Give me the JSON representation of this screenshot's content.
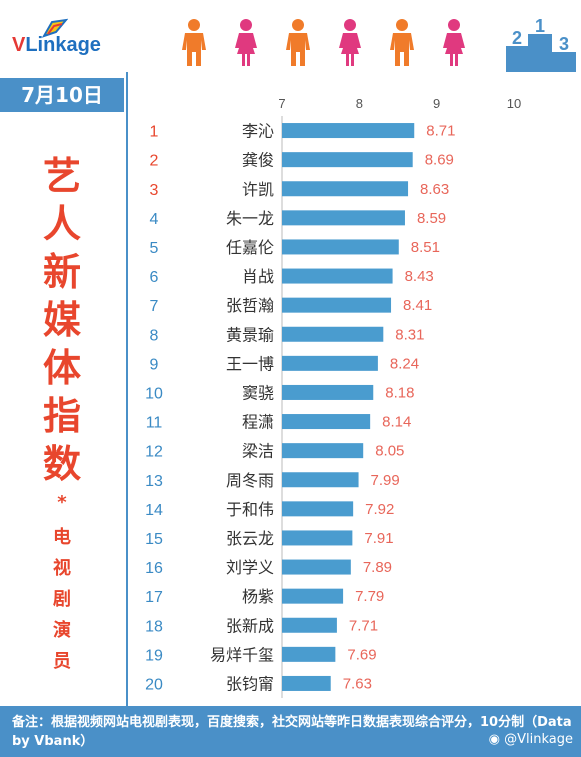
{
  "header": {
    "logo_prefix": "V",
    "logo_rest": "Linkage",
    "podium_numbers": [
      "2",
      "1",
      "3"
    ]
  },
  "sidebar": {
    "date": "7月10日",
    "title_chars": [
      "艺",
      "人",
      "新",
      "媒",
      "体",
      "指",
      "数"
    ],
    "star": "*",
    "subtitle_chars": [
      "电",
      "视",
      "剧",
      "演",
      "员"
    ]
  },
  "footer": {
    "note": "备注：根据视频网站电视剧表现，百度搜索，社交网站等昨日数据表现综合评分，10分制（Data by Vbank）",
    "weibo": "@Vlinkage"
  },
  "colors": {
    "accent_blue": "#4a90c8",
    "bar": "#4a9ccf",
    "title_red": "#e8462d",
    "value_red": "#e8665a",
    "rank_top3": "#e8462d",
    "rank_rest": "#3a8ac4",
    "male_icon": "#f07b2a",
    "female_icon": "#e0397f"
  },
  "chart_data": {
    "type": "bar",
    "orientation": "horizontal",
    "title": "艺人新媒体指数",
    "xlim": [
      7,
      10
    ],
    "xticks": [
      7,
      8,
      9,
      10
    ],
    "grid": false,
    "ranks": [
      "1",
      "2",
      "3",
      "4",
      "5",
      "6",
      "7",
      "8",
      "9",
      "10",
      "11",
      "12",
      "13",
      "14",
      "15",
      "16",
      "17",
      "18",
      "19",
      "20"
    ],
    "categories": [
      "李沁",
      "龚俊",
      "许凯",
      "朱一龙",
      "任嘉伦",
      "肖战",
      "张哲瀚",
      "黄景瑜",
      "王一博",
      "窦骁",
      "程潇",
      "梁洁",
      "周冬雨",
      "于和伟",
      "张云龙",
      "刘学义",
      "杨紫",
      "张新成",
      "易烊千玺",
      "张钧甯"
    ],
    "values": [
      8.71,
      8.69,
      8.63,
      8.59,
      8.51,
      8.43,
      8.41,
      8.31,
      8.24,
      8.18,
      8.14,
      8.05,
      7.99,
      7.92,
      7.91,
      7.89,
      7.79,
      7.71,
      7.69,
      7.63
    ]
  }
}
